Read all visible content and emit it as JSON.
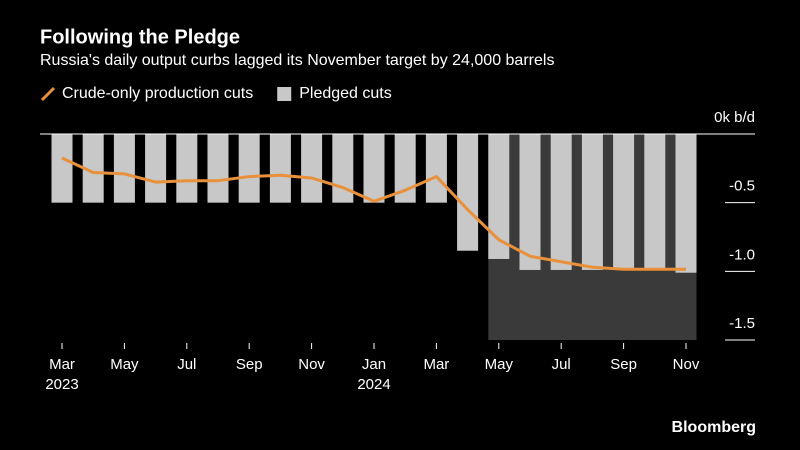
{
  "chart_data": {
    "type": "bar_line",
    "title": "Following the Pledge",
    "subtitle": "Russia's daily output curbs lagged its November target by 24,000 barrels",
    "source": "Bloomberg",
    "categories": [
      "Mar",
      null,
      "May",
      null,
      "Jul",
      null,
      "Sep",
      null,
      "Nov",
      null,
      "Jan",
      null,
      "Mar",
      null,
      "May",
      null,
      "Jul",
      null,
      "Sep",
      null,
      "Nov"
    ],
    "category_years": [
      "2023",
      null,
      null,
      null,
      null,
      null,
      null,
      null,
      null,
      null,
      "2024",
      null,
      null,
      null,
      null,
      null,
      null,
      null,
      null,
      null,
      null
    ],
    "series": [
      {
        "name": "Crude-only production cuts",
        "kind": "line",
        "color": "#e8903a",
        "values": [
          -0.175,
          -0.28,
          -0.29,
          -0.35,
          -0.34,
          -0.34,
          -0.31,
          -0.3,
          -0.32,
          -0.39,
          -0.49,
          -0.41,
          -0.31,
          -0.55,
          -0.77,
          -0.89,
          -0.93,
          -0.97,
          -0.985,
          -0.985,
          -0.985
        ]
      },
      {
        "name": "Pledged cuts",
        "kind": "bar",
        "color": "#c8c8c8",
        "values": [
          -0.5,
          -0.5,
          -0.5,
          -0.5,
          -0.5,
          -0.5,
          -0.5,
          -0.5,
          -0.5,
          -0.5,
          -0.5,
          -0.5,
          -0.5,
          -0.85,
          -0.91,
          -0.99,
          -0.99,
          -0.99,
          -0.99,
          -0.99,
          -1.01
        ]
      }
    ],
    "shade": {
      "from": 14,
      "to": 20,
      "color": "#3a3a3a"
    },
    "ylim": [
      -1.5,
      0
    ],
    "yticks": [
      {
        "value": 0,
        "label": "0k b/d"
      },
      -0.5,
      {
        "value": -1,
        "label": "-1.0"
      },
      -1.5
    ]
  }
}
